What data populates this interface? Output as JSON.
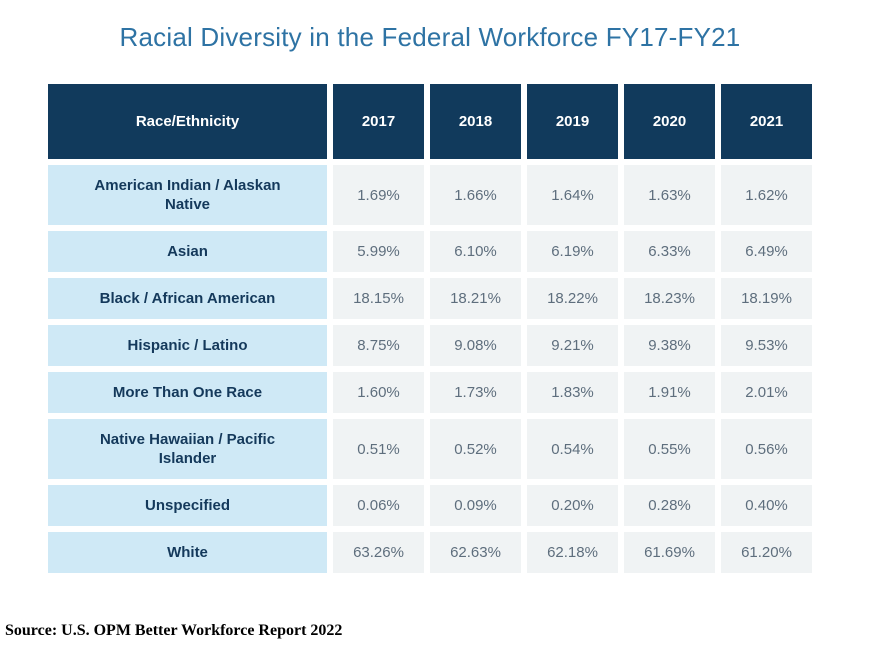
{
  "colors": {
    "header_bg": "#113A5C",
    "header_text": "#FFFFFF",
    "label_bg": "#CFE9F6",
    "label_text": "#14395B",
    "value_bg": "#F0F3F4",
    "value_text": "#5E6E7D",
    "title_text": "#2E73A4",
    "source_text": "#000000"
  },
  "chart_data": {
    "type": "table",
    "title": "Racial Diversity in the Federal Workforce FY17-FY21",
    "columns": [
      "Race/Ethnicity",
      "2017",
      "2018",
      "2019",
      "2020",
      "2021"
    ],
    "rows": [
      {
        "label": "American Indian / Alaskan Native",
        "values": [
          "1.69%",
          "1.66%",
          "1.64%",
          "1.63%",
          "1.62%"
        ]
      },
      {
        "label": "Asian",
        "values": [
          "5.99%",
          "6.10%",
          "6.19%",
          "6.33%",
          "6.49%"
        ]
      },
      {
        "label": "Black / African American",
        "values": [
          "18.15%",
          "18.21%",
          "18.22%",
          "18.23%",
          "18.19%"
        ]
      },
      {
        "label": "Hispanic / Latino",
        "values": [
          "8.75%",
          "9.08%",
          "9.21%",
          "9.38%",
          "9.53%"
        ]
      },
      {
        "label": "More Than One Race",
        "values": [
          "1.60%",
          "1.73%",
          "1.83%",
          "1.91%",
          "2.01%"
        ]
      },
      {
        "label": "Native Hawaiian / Pacific Islander",
        "values": [
          "0.51%",
          "0.52%",
          "0.54%",
          "0.55%",
          "0.56%"
        ]
      },
      {
        "label": "Unspecified",
        "values": [
          "0.06%",
          "0.09%",
          "0.20%",
          "0.28%",
          "0.40%"
        ]
      },
      {
        "label": "White",
        "values": [
          "63.26%",
          "62.63%",
          "62.18%",
          "61.69%",
          "61.20%"
        ]
      }
    ],
    "source": "Source: U.S. OPM Better Workforce Report 2022"
  }
}
